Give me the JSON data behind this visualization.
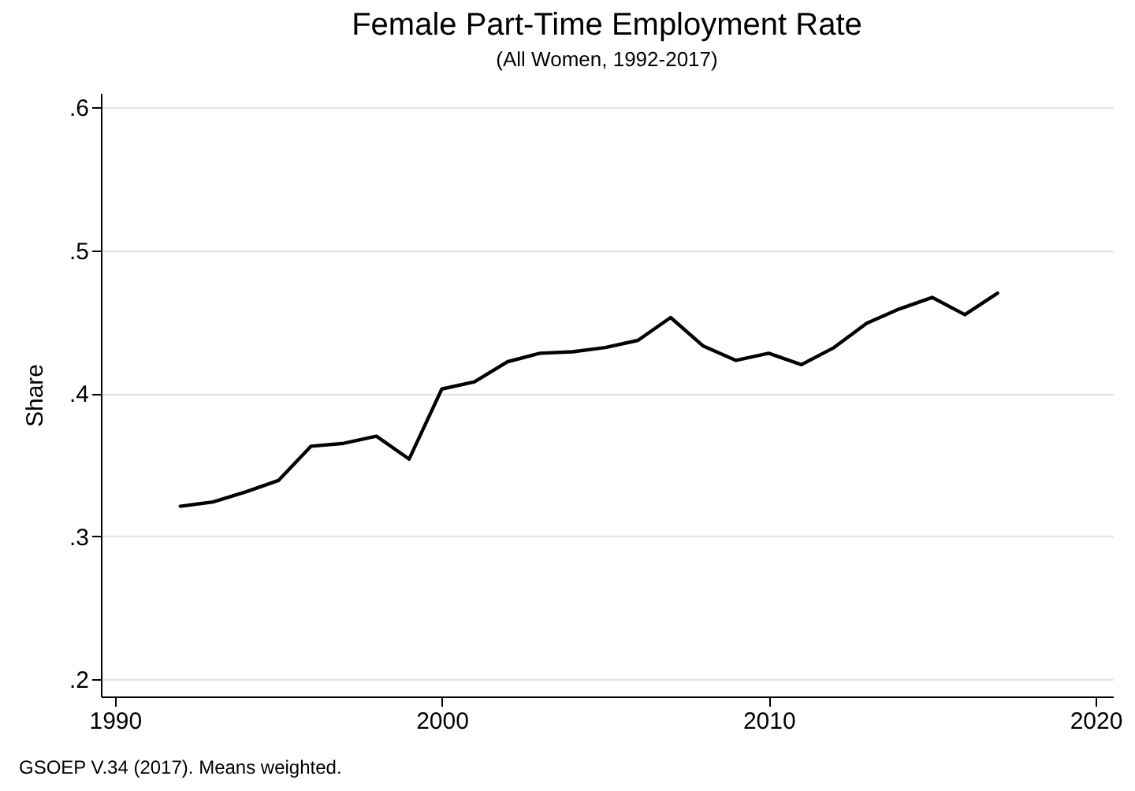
{
  "chart_data": {
    "type": "line",
    "title": "Female Part-Time Employment Rate",
    "subtitle": "(All Women, 1992-2017)",
    "ylabel": "Share",
    "annotations": [
      "GSOEP V.34 (2017). Means weighted."
    ],
    "x": [
      1992,
      1993,
      1994,
      1995,
      1996,
      1997,
      1998,
      1999,
      2000,
      2001,
      2002,
      2003,
      2004,
      2005,
      2006,
      2007,
      2008,
      2009,
      2010,
      2011,
      2012,
      2013,
      2014,
      2015,
      2016,
      2017
    ],
    "series": [
      {
        "color": "#000000",
        "values": [
          0.321,
          0.324,
          0.331,
          0.339,
          0.363,
          0.365,
          0.37,
          0.354,
          0.403,
          0.408,
          0.422,
          0.428,
          0.429,
          0.432,
          0.437,
          0.453,
          0.433,
          0.423,
          0.428,
          0.42,
          0.432,
          0.449,
          0.459,
          0.467,
          0.455,
          0.47
        ]
      }
    ],
    "xlim": [
      1989.57,
      2020.53
    ],
    "xticks": [
      1990,
      2000,
      2010,
      2020
    ],
    "ylim": [
      0.188,
      0.61
    ],
    "yticks": [
      {
        "value": 0.2,
        "label": ".2"
      },
      {
        "value": 0.3,
        "label": ".3"
      },
      {
        "value": 0.4,
        "label": ".4"
      },
      {
        "value": 0.5,
        "label": ".5"
      },
      {
        "value": 0.6,
        "label": ".6"
      }
    ],
    "grid": "y",
    "marker": "none",
    "line_style": "solid"
  }
}
